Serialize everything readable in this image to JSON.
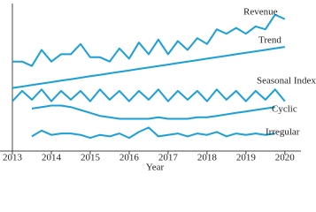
{
  "chart_data": {
    "type": "line",
    "x_label": "Year",
    "x": [
      2013,
      2013.25,
      2013.5,
      2013.75,
      2014,
      2014.25,
      2014.5,
      2014.75,
      2015,
      2015.25,
      2015.5,
      2015.75,
      2016,
      2016.25,
      2016.5,
      2016.75,
      2017,
      2017.25,
      2017.5,
      2017.75,
      2018,
      2018.25,
      2018.5,
      2018.75,
      2019,
      2019.25,
      2019.5,
      2019.75,
      2020,
      2020.25
    ],
    "xlim": [
      2013,
      2020.3
    ],
    "xticks": [
      2013,
      2014,
      2015,
      2016,
      2017,
      2018,
      2019,
      2020
    ],
    "ylim": [
      0,
      100
    ],
    "series": [
      {
        "name": "Revenue",
        "color": "#1a9fd9",
        "values": [
          61,
          61,
          58,
          69,
          61,
          66,
          66,
          73,
          64,
          64,
          61,
          70,
          63,
          74,
          66,
          76,
          66,
          75,
          69,
          77,
          73,
          83,
          80,
          84,
          80,
          85,
          83,
          93,
          90,
          null
        ]
      },
      {
        "name": "Trend",
        "color": "#1a9fd9",
        "values": [
          43,
          44,
          45,
          46,
          47,
          48,
          49,
          50,
          51,
          52,
          53,
          54,
          55,
          56,
          57,
          58,
          59,
          60,
          61,
          62,
          63,
          64,
          65,
          66,
          67,
          68,
          69,
          70,
          71,
          null
        ]
      },
      {
        "name": "Seasonal Index",
        "color": "#1a9fd9",
        "values": [
          34,
          41,
          35,
          42,
          34,
          41,
          35,
          41,
          34,
          42,
          35,
          41,
          34,
          41,
          35,
          42,
          34,
          41,
          35,
          41,
          34,
          42,
          35,
          41,
          34,
          41,
          35,
          42,
          34,
          null
        ]
      },
      {
        "name": "Cyclic",
        "color": "#1a9fd9",
        "values": [
          null,
          null,
          29,
          30,
          31,
          31,
          30,
          28,
          26,
          24,
          23,
          22,
          22,
          22,
          22,
          23,
          22,
          22,
          22,
          23,
          23,
          24,
          25,
          26,
          27,
          28,
          29,
          30,
          null,
          null
        ]
      },
      {
        "name": "Irregular",
        "color": "#1a9fd9",
        "values": [
          null,
          null,
          10,
          14,
          11,
          12,
          12,
          11,
          9,
          11,
          10,
          12,
          9,
          13,
          16,
          10,
          11,
          12,
          10,
          12,
          11,
          13,
          10,
          12,
          11,
          12,
          11,
          12,
          null,
          null
        ]
      }
    ]
  }
}
